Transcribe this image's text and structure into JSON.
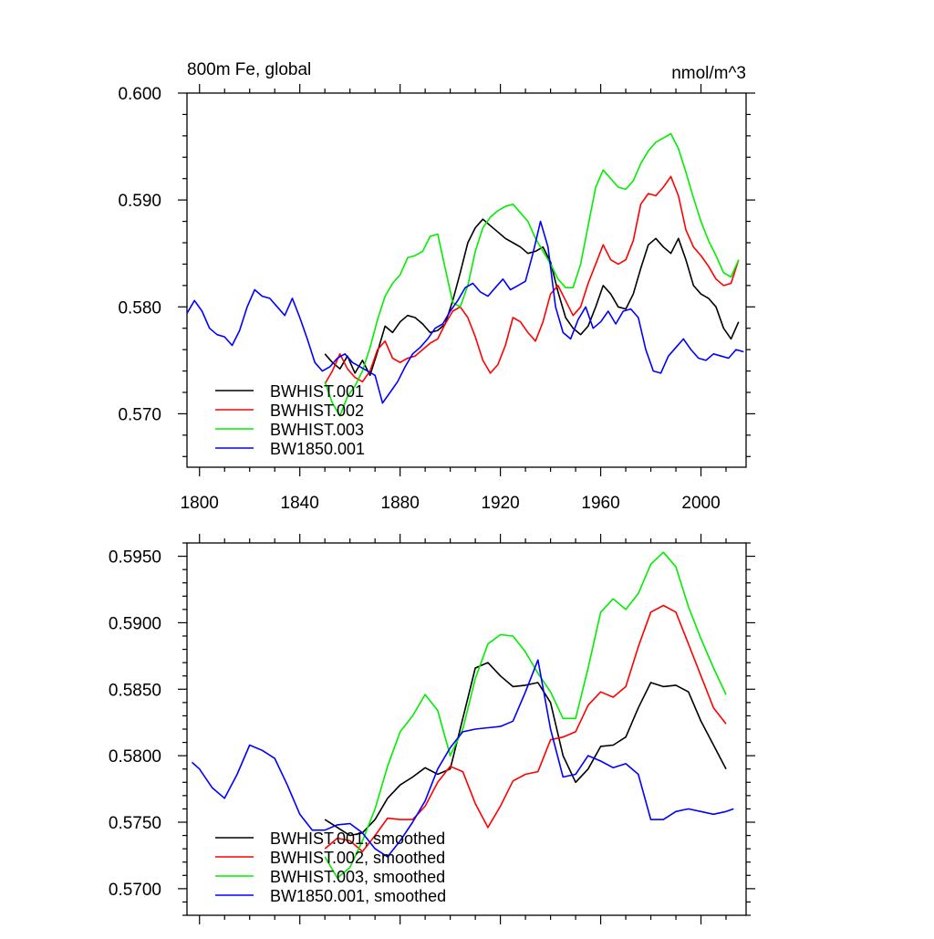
{
  "chart_data": [
    {
      "type": "line",
      "title": "800m Fe, global",
      "units": "nmol/m^3",
      "xlim": [
        1795,
        2018
      ],
      "ylim": [
        0.565,
        0.6
      ],
      "xticks": [
        1800,
        1840,
        1880,
        1920,
        1960,
        2000
      ],
      "xtick_labels": [
        "1800",
        "1840",
        "1880",
        "1920",
        "1960",
        "2000"
      ],
      "yticks": [
        0.57,
        0.58,
        0.59,
        0.6
      ],
      "ytick_labels": [
        "0.570",
        "0.580",
        "0.590",
        "0.600"
      ],
      "legend_position": "bottom-left",
      "series": [
        {
          "name": "BWHIST.001",
          "color": "#000000",
          "x": [
            1850,
            1853,
            1856,
            1859,
            1862,
            1865,
            1868,
            1871,
            1874,
            1877,
            1880,
            1883,
            1886,
            1889,
            1892,
            1895,
            1898,
            1901,
            1904,
            1907,
            1910,
            1913,
            1916,
            1919,
            1922,
            1925,
            1928,
            1931,
            1934,
            1937,
            1940,
            1943,
            1946,
            1949,
            1952,
            1955,
            1958,
            1961,
            1964,
            1967,
            1970,
            1973,
            1976,
            1979,
            1982,
            1985,
            1988,
            1991,
            1994,
            1997,
            2000,
            2003,
            2006,
            2009,
            2012,
            2015
          ],
          "y": [
            0.5756,
            0.5748,
            0.5742,
            0.5754,
            0.5738,
            0.575,
            0.5736,
            0.5758,
            0.5782,
            0.5776,
            0.5786,
            0.5792,
            0.579,
            0.5784,
            0.5776,
            0.5778,
            0.5784,
            0.5806,
            0.5832,
            0.586,
            0.5874,
            0.5882,
            0.5876,
            0.587,
            0.5864,
            0.586,
            0.5856,
            0.585,
            0.5852,
            0.5856,
            0.5842,
            0.5814,
            0.579,
            0.578,
            0.5774,
            0.5782,
            0.58,
            0.582,
            0.5812,
            0.58,
            0.5798,
            0.5812,
            0.5836,
            0.5858,
            0.5864,
            0.5856,
            0.585,
            0.5864,
            0.5844,
            0.582,
            0.5812,
            0.5808,
            0.58,
            0.578,
            0.577,
            0.5786
          ]
        },
        {
          "name": "BWHIST.002",
          "color": "#ff0000",
          "x": [
            1850,
            1853,
            1856,
            1859,
            1862,
            1865,
            1868,
            1871,
            1874,
            1877,
            1880,
            1883,
            1886,
            1889,
            1892,
            1895,
            1898,
            1901,
            1904,
            1907,
            1910,
            1913,
            1916,
            1919,
            1922,
            1925,
            1928,
            1931,
            1934,
            1937,
            1940,
            1943,
            1946,
            1949,
            1952,
            1955,
            1958,
            1961,
            1964,
            1967,
            1970,
            1973,
            1976,
            1979,
            1982,
            1985,
            1988,
            1991,
            1994,
            1997,
            2000,
            2003,
            2006,
            2009,
            2012,
            2015
          ],
          "y": [
            0.5728,
            0.574,
            0.5756,
            0.5742,
            0.5734,
            0.573,
            0.574,
            0.576,
            0.5768,
            0.5752,
            0.5748,
            0.5752,
            0.5754,
            0.576,
            0.5766,
            0.577,
            0.5784,
            0.5796,
            0.58,
            0.579,
            0.5772,
            0.575,
            0.5738,
            0.5746,
            0.5764,
            0.579,
            0.5786,
            0.5776,
            0.5768,
            0.5786,
            0.5812,
            0.582,
            0.5806,
            0.5792,
            0.58,
            0.5822,
            0.584,
            0.5858,
            0.5844,
            0.584,
            0.5844,
            0.5862,
            0.5896,
            0.5906,
            0.5904,
            0.5912,
            0.5922,
            0.5904,
            0.5872,
            0.5856,
            0.5848,
            0.5838,
            0.5826,
            0.582,
            0.5822,
            0.5844
          ]
        },
        {
          "name": "BWHIST.003",
          "color": "#00ee00",
          "x": [
            1850,
            1853,
            1856,
            1859,
            1862,
            1865,
            1868,
            1871,
            1874,
            1877,
            1880,
            1883,
            1886,
            1889,
            1892,
            1895,
            1898,
            1901,
            1904,
            1907,
            1910,
            1913,
            1916,
            1919,
            1922,
            1925,
            1928,
            1931,
            1934,
            1937,
            1940,
            1943,
            1946,
            1949,
            1952,
            1955,
            1958,
            1961,
            1964,
            1967,
            1970,
            1973,
            1976,
            1979,
            1982,
            1985,
            1988,
            1991,
            1994,
            1997,
            2000,
            2003,
            2006,
            2009,
            2012,
            2015
          ],
          "y": [
            0.573,
            0.571,
            0.5698,
            0.5716,
            0.5726,
            0.574,
            0.5762,
            0.5788,
            0.581,
            0.5822,
            0.583,
            0.5846,
            0.5848,
            0.5852,
            0.5866,
            0.5868,
            0.5836,
            0.5804,
            0.58,
            0.582,
            0.5852,
            0.5874,
            0.5884,
            0.589,
            0.5894,
            0.5896,
            0.5888,
            0.588,
            0.5864,
            0.5852,
            0.584,
            0.5826,
            0.5818,
            0.5818,
            0.584,
            0.5876,
            0.5912,
            0.5928,
            0.592,
            0.5912,
            0.591,
            0.5918,
            0.5934,
            0.5946,
            0.5954,
            0.5958,
            0.5962,
            0.5948,
            0.5926,
            0.5902,
            0.588,
            0.5862,
            0.5848,
            0.5832,
            0.5828,
            0.5844
          ]
        },
        {
          "name": "BW1850.001",
          "color": "#0000ff",
          "x": [
            1795,
            1798,
            1801,
            1804,
            1807,
            1810,
            1813,
            1816,
            1819,
            1822,
            1825,
            1828,
            1831,
            1834,
            1837,
            1840,
            1843,
            1846,
            1849,
            1852,
            1855,
            1858,
            1861,
            1864,
            1867,
            1870,
            1873,
            1876,
            1879,
            1882,
            1885,
            1888,
            1891,
            1894,
            1897,
            1900,
            1903,
            1906,
            1909,
            1912,
            1915,
            1918,
            1921,
            1924,
            1927,
            1930,
            1933,
            1936,
            1939,
            1942,
            1945,
            1948,
            1951,
            1954,
            1957,
            1960,
            1963,
            1966,
            1969,
            1972,
            1975,
            1978,
            1981,
            1984,
            1987,
            1990,
            1993,
            1996,
            1999,
            2002,
            2005,
            2008,
            2011,
            2014,
            2017
          ],
          "y": [
            0.5794,
            0.5806,
            0.5796,
            0.578,
            0.5774,
            0.5772,
            0.5764,
            0.5778,
            0.58,
            0.5816,
            0.581,
            0.5808,
            0.58,
            0.5792,
            0.5808,
            0.579,
            0.577,
            0.5748,
            0.574,
            0.5744,
            0.5752,
            0.5756,
            0.5748,
            0.5744,
            0.574,
            0.5736,
            0.571,
            0.572,
            0.573,
            0.5744,
            0.5756,
            0.5762,
            0.577,
            0.578,
            0.5784,
            0.5796,
            0.5806,
            0.5818,
            0.5822,
            0.5814,
            0.581,
            0.5818,
            0.5826,
            0.5816,
            0.582,
            0.5824,
            0.585,
            0.588,
            0.5856,
            0.58,
            0.5776,
            0.577,
            0.5788,
            0.58,
            0.578,
            0.5786,
            0.5796,
            0.5784,
            0.5796,
            0.5798,
            0.579,
            0.576,
            0.574,
            0.5738,
            0.5754,
            0.5762,
            0.577,
            0.576,
            0.5752,
            0.575,
            0.5756,
            0.5754,
            0.5752,
            0.576,
            0.5758
          ]
        }
      ]
    },
    {
      "type": "line",
      "title": "",
      "units": "",
      "xlim": [
        1795,
        2018
      ],
      "ylim": [
        0.568,
        0.596
      ],
      "xticks": [
        1800,
        1840,
        1880,
        1920,
        1960,
        2000
      ],
      "xtick_labels": [],
      "yticks": [
        0.57,
        0.575,
        0.58,
        0.585,
        0.59,
        0.595
      ],
      "ytick_labels": [
        "0.5700",
        "0.5750",
        "0.5800",
        "0.5850",
        "0.5900",
        "0.5950"
      ],
      "legend_position": "bottom-left",
      "series": [
        {
          "name": "BWHIST.001, smoothed",
          "color": "#000000",
          "x": [
            1850,
            1855,
            1860,
            1865,
            1870,
            1875,
            1880,
            1885,
            1890,
            1895,
            1900,
            1905,
            1910,
            1915,
            1920,
            1925,
            1930,
            1935,
            1940,
            1945,
            1950,
            1955,
            1960,
            1965,
            1970,
            1975,
            1980,
            1985,
            1990,
            1995,
            2000,
            2005,
            2010
          ],
          "y": [
            0.5752,
            0.5746,
            0.574,
            0.5742,
            0.5752,
            0.5768,
            0.5778,
            0.5784,
            0.5791,
            0.5786,
            0.579,
            0.5828,
            0.5866,
            0.587,
            0.586,
            0.5852,
            0.5853,
            0.5855,
            0.584,
            0.58,
            0.578,
            0.579,
            0.5807,
            0.5808,
            0.5814,
            0.5836,
            0.5855,
            0.5852,
            0.5853,
            0.5848,
            0.5826,
            0.5808,
            0.579
          ]
        },
        {
          "name": "BWHIST.002, smoothed",
          "color": "#ff0000",
          "x": [
            1850,
            1855,
            1860,
            1865,
            1870,
            1875,
            1880,
            1885,
            1890,
            1895,
            1900,
            1905,
            1910,
            1915,
            1920,
            1925,
            1930,
            1935,
            1940,
            1945,
            1950,
            1955,
            1960,
            1965,
            1970,
            1975,
            1980,
            1985,
            1990,
            1995,
            2000,
            2005,
            2010
          ],
          "y": [
            0.573,
            0.5738,
            0.5736,
            0.5728,
            0.574,
            0.5753,
            0.5752,
            0.5752,
            0.5762,
            0.578,
            0.5792,
            0.5788,
            0.5764,
            0.5746,
            0.5762,
            0.5781,
            0.5786,
            0.5788,
            0.5812,
            0.5814,
            0.5818,
            0.5838,
            0.5848,
            0.5844,
            0.5852,
            0.5882,
            0.5908,
            0.5913,
            0.5908,
            0.5884,
            0.586,
            0.5836,
            0.5824
          ]
        },
        {
          "name": "BWHIST.003, smoothed",
          "color": "#00ee00",
          "x": [
            1850,
            1855,
            1860,
            1865,
            1870,
            1875,
            1880,
            1885,
            1890,
            1895,
            1900,
            1905,
            1910,
            1915,
            1920,
            1925,
            1930,
            1935,
            1940,
            1945,
            1950,
            1955,
            1960,
            1965,
            1970,
            1975,
            1980,
            1985,
            1990,
            1995,
            2000,
            2005,
            2010
          ],
          "y": [
            0.5724,
            0.5708,
            0.5716,
            0.5736,
            0.576,
            0.5792,
            0.5818,
            0.583,
            0.5846,
            0.5834,
            0.58,
            0.582,
            0.5858,
            0.5884,
            0.5891,
            0.589,
            0.5878,
            0.5862,
            0.5848,
            0.5828,
            0.5828,
            0.5866,
            0.5908,
            0.5918,
            0.591,
            0.5922,
            0.5944,
            0.5953,
            0.5942,
            0.5912,
            0.5888,
            0.5866,
            0.5846
          ]
        },
        {
          "name": "BW1850.001, smoothed",
          "color": "#0000ff",
          "x": [
            1797,
            1800,
            1805,
            1810,
            1815,
            1820,
            1825,
            1830,
            1835,
            1840,
            1845,
            1850,
            1855,
            1860,
            1865,
            1870,
            1875,
            1880,
            1885,
            1890,
            1895,
            1900,
            1905,
            1910,
            1915,
            1920,
            1925,
            1930,
            1935,
            1940,
            1945,
            1950,
            1955,
            1960,
            1965,
            1970,
            1975,
            1980,
            1985,
            1990,
            1995,
            2000,
            2005,
            2010,
            2013
          ],
          "y": [
            0.5795,
            0.579,
            0.5776,
            0.5768,
            0.5786,
            0.5808,
            0.5804,
            0.5798,
            0.5778,
            0.5756,
            0.5744,
            0.5744,
            0.5748,
            0.5749,
            0.5742,
            0.573,
            0.5724,
            0.5736,
            0.575,
            0.5766,
            0.579,
            0.5806,
            0.5818,
            0.582,
            0.5821,
            0.5822,
            0.5826,
            0.5848,
            0.5872,
            0.582,
            0.5784,
            0.5786,
            0.58,
            0.5796,
            0.5791,
            0.5794,
            0.5786,
            0.5752,
            0.5752,
            0.5758,
            0.576,
            0.5758,
            0.5756,
            0.5758,
            0.576
          ]
        }
      ]
    }
  ]
}
